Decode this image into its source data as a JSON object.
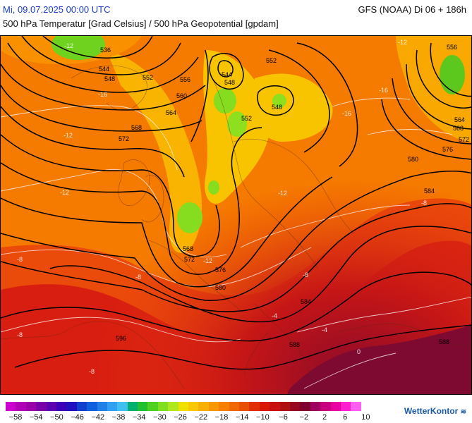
{
  "header": {
    "datetime": "Mi, 09.07.2025 00:00 UTC",
    "model": "GFS (NOAA) Di 06 + 186h",
    "subtitle": "500 hPa Temperatur [Grad Celsius] / 500 hPa Geopotential [gpdam]"
  },
  "map": {
    "geopotential_labels": [
      "536",
      "544",
      "548",
      "552",
      "556",
      "560",
      "564",
      "568",
      "572",
      "576",
      "580",
      "584",
      "588",
      "596",
      "544",
      "548",
      "552",
      "548",
      "552",
      "556",
      "564",
      "568",
      "572",
      "576",
      "580",
      "584",
      "588"
    ],
    "isotherm_labels": [
      "-12",
      "-16",
      "-16",
      "-12",
      "-12",
      "-12",
      "-12",
      "-8",
      "-8",
      "-8",
      "-8",
      "-8",
      "-4",
      "-4",
      "0",
      "-8",
      "-12",
      "-16"
    ]
  },
  "legend": {
    "colors": [
      "#cc00cc",
      "#b000b8",
      "#9a00a8",
      "#7800a8",
      "#5a00b0",
      "#3c00b8",
      "#2010c0",
      "#1040d0",
      "#1060e0",
      "#2080e8",
      "#30a0f0",
      "#40c0f0",
      "#00b070",
      "#20c030",
      "#50d020",
      "#80e020",
      "#b0e820",
      "#f0e000",
      "#f8c800",
      "#f8b000",
      "#f89800",
      "#f88000",
      "#f06800",
      "#e85000",
      "#e03000",
      "#d81800",
      "#c81010",
      "#b01010",
      "#980820",
      "#800030",
      "#a00060",
      "#c80080",
      "#e800a0",
      "#ff20d0",
      "#ff60f0"
    ],
    "labels": [
      "−58",
      "−54",
      "−50",
      "−46",
      "−42",
      "−38",
      "−34",
      "−30",
      "−26",
      "−22",
      "−18",
      "−14",
      "−10",
      "−6",
      "−2",
      "2",
      "6",
      "10"
    ],
    "brand": "WetterKontor"
  }
}
